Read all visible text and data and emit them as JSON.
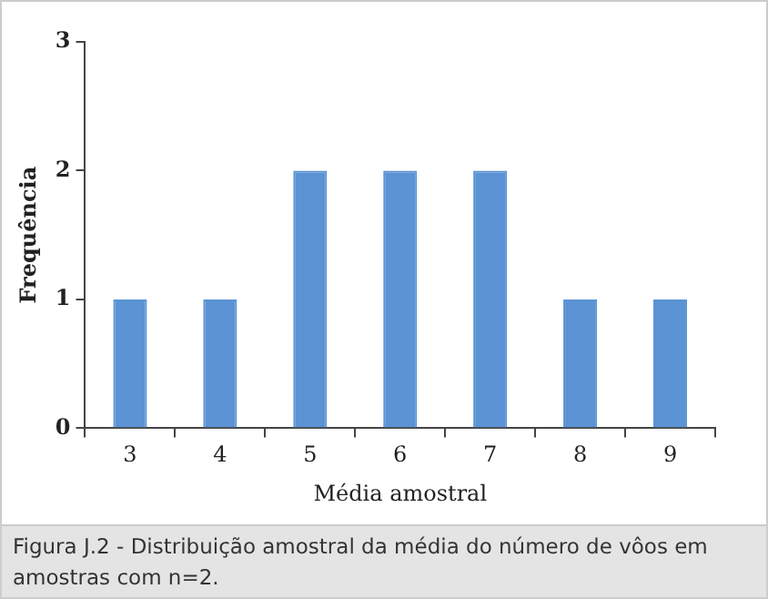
{
  "chart_data": {
    "type": "bar",
    "xlabel": "Média amostral",
    "ylabel": "Frequência",
    "categories": [
      "3",
      "4",
      "5",
      "6",
      "7",
      "8",
      "9"
    ],
    "values": [
      1,
      1,
      2,
      2,
      2,
      1,
      1
    ],
    "color": "#5b93d4",
    "ylim": [
      0,
      3
    ],
    "yticks": [
      0,
      1,
      2,
      3
    ],
    "grid": false,
    "legend": false,
    "annotations": [
      "Figura J.2 - Distribuição amostral da média do número de vôos em amostras com n=2."
    ]
  }
}
